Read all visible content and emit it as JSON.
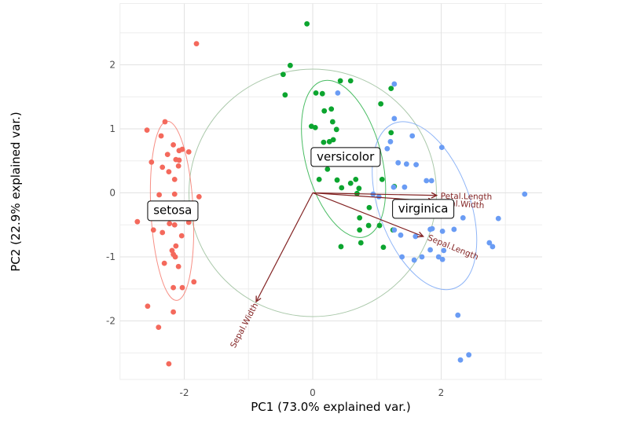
{
  "chart_data": {
    "type": "scatter",
    "title": "",
    "xlabel": "PC1 (73.0% explained var.)",
    "ylabel": "PC2 (22.9% explained var.)",
    "xlim": [
      -3.0,
      3.57
    ],
    "ylim": [
      -2.92,
      2.96
    ],
    "x_ticks": [
      -2,
      0,
      2
    ],
    "y_ticks": [
      -2,
      -1,
      0,
      1,
      2
    ],
    "grid": true,
    "legend_position": "none",
    "colors": {
      "tick_label": "#4d4d4d",
      "grid_major": "#e2e2e2",
      "grid_minor": "#ededed",
      "arrow": "#832424",
      "unit_circle": "#abc9ab"
    },
    "unit_circle_radius": 1.93,
    "series": [
      {
        "name": "setosa",
        "color": "#f4695c",
        "label_box": {
          "text": "setosa",
          "x": -2.18,
          "y": -0.28
        },
        "ellipse": {
          "cx": -2.19,
          "cy": -0.28,
          "rx": 0.33,
          "ry": 1.4,
          "angle": -3
        },
        "points": [
          [
            -1.81,
            2.33
          ],
          [
            -2.3,
            1.11
          ],
          [
            -2.58,
            0.98
          ],
          [
            -2.36,
            0.89
          ],
          [
            -2.17,
            0.75
          ],
          [
            -2.03,
            0.68
          ],
          [
            -2.08,
            0.66
          ],
          [
            -1.93,
            0.64
          ],
          [
            -2.26,
            0.6
          ],
          [
            -2.51,
            0.48
          ],
          [
            -2.13,
            0.52
          ],
          [
            -2.08,
            0.51
          ],
          [
            -2.09,
            0.42
          ],
          [
            -2.34,
            0.4
          ],
          [
            -2.24,
            0.33
          ],
          [
            -2.15,
            0.21
          ],
          [
            -2.39,
            -0.03
          ],
          [
            -2.15,
            -0.02
          ],
          [
            -1.77,
            -0.06
          ],
          [
            -2.73,
            -0.45
          ],
          [
            -2.23,
            -0.48
          ],
          [
            -2.15,
            -0.5
          ],
          [
            -1.93,
            -0.46
          ],
          [
            -2.48,
            -0.58
          ],
          [
            -2.34,
            -0.62
          ],
          [
            -2.04,
            -0.67
          ],
          [
            -2.13,
            -0.83
          ],
          [
            -2.19,
            -0.9
          ],
          [
            -2.17,
            -0.96
          ],
          [
            -2.14,
            -1.0
          ],
          [
            -2.31,
            -1.1
          ],
          [
            -2.09,
            -1.15
          ],
          [
            -1.85,
            -1.39
          ],
          [
            -2.17,
            -1.48
          ],
          [
            -2.03,
            -1.48
          ],
          [
            -2.57,
            -1.77
          ],
          [
            -2.17,
            -1.86
          ],
          [
            -2.4,
            -2.1
          ],
          [
            -2.24,
            -2.67
          ]
        ]
      },
      {
        "name": "versicolor",
        "color": "#0ca52f",
        "label_box": {
          "text": "versicolor",
          "x": 0.51,
          "y": 0.56
        },
        "ellipse": {
          "cx": 0.48,
          "cy": 0.53,
          "rx": 0.59,
          "ry": 1.26,
          "angle": -15
        },
        "points": [
          [
            -0.09,
            2.64
          ],
          [
            -0.35,
            1.99
          ],
          [
            -0.46,
            1.85
          ],
          [
            0.43,
            1.75
          ],
          [
            0.59,
            1.75
          ],
          [
            -0.43,
            1.53
          ],
          [
            0.05,
            1.56
          ],
          [
            0.15,
            1.55
          ],
          [
            0.18,
            1.28
          ],
          [
            0.29,
            1.31
          ],
          [
            1.06,
            1.39
          ],
          [
            1.22,
            1.63
          ],
          [
            0.31,
            1.11
          ],
          [
            -0.02,
            1.04
          ],
          [
            0.04,
            1.02
          ],
          [
            0.37,
            0.99
          ],
          [
            1.22,
            0.94
          ],
          [
            0.17,
            0.79
          ],
          [
            0.26,
            0.8
          ],
          [
            0.32,
            0.83
          ],
          [
            0.23,
            0.37
          ],
          [
            0.1,
            0.21
          ],
          [
            0.38,
            0.2
          ],
          [
            0.59,
            0.15
          ],
          [
            0.45,
            0.08
          ],
          [
            0.67,
            0.21
          ],
          [
            0.72,
            0.07
          ],
          [
            0.69,
            -0.01
          ],
          [
            1.08,
            0.21
          ],
          [
            1.27,
            0.1
          ],
          [
            0.88,
            -0.23
          ],
          [
            0.73,
            -0.39
          ],
          [
            0.87,
            -0.51
          ],
          [
            1.04,
            -0.51
          ],
          [
            0.73,
            -0.58
          ],
          [
            1.25,
            -0.58
          ],
          [
            0.44,
            -0.84
          ],
          [
            0.75,
            -0.78
          ],
          [
            1.1,
            -0.85
          ]
        ]
      },
      {
        "name": "virginica",
        "color": "#6a9cf4",
        "label_box": {
          "text": "virginica",
          "x": 1.72,
          "y": -0.25
        },
        "ellipse": {
          "cx": 1.74,
          "cy": -0.2,
          "rx": 0.71,
          "ry": 1.37,
          "angle": -20
        },
        "points": [
          [
            1.27,
            1.7
          ],
          [
            0.39,
            1.56
          ],
          [
            1.27,
            1.16
          ],
          [
            1.55,
            0.89
          ],
          [
            1.21,
            0.8
          ],
          [
            1.16,
            0.69
          ],
          [
            2.01,
            0.71
          ],
          [
            1.33,
            0.47
          ],
          [
            1.46,
            0.45
          ],
          [
            1.61,
            0.44
          ],
          [
            1.77,
            0.19
          ],
          [
            1.85,
            0.19
          ],
          [
            1.43,
            0.09
          ],
          [
            1.26,
            0.09
          ],
          [
            0.94,
            -0.02
          ],
          [
            1.03,
            -0.06
          ],
          [
            1.37,
            -0.66
          ],
          [
            1.27,
            -0.58
          ],
          [
            1.39,
            -1.0
          ],
          [
            1.6,
            -0.68
          ],
          [
            1.83,
            -0.57
          ],
          [
            1.58,
            -1.05
          ],
          [
            1.7,
            -1.0
          ],
          [
            1.83,
            -0.89
          ],
          [
            2.34,
            -0.39
          ],
          [
            2.89,
            -0.4
          ],
          [
            2.02,
            -0.6
          ],
          [
            2.2,
            -0.57
          ],
          [
            1.86,
            -0.56
          ],
          [
            2.75,
            -0.78
          ],
          [
            2.8,
            -0.84
          ],
          [
            2.04,
            -0.9
          ],
          [
            1.96,
            -1.0
          ],
          [
            2.02,
            -1.04
          ],
          [
            2.26,
            -1.91
          ],
          [
            2.43,
            -2.53
          ],
          [
            2.3,
            -2.61
          ],
          [
            3.3,
            -0.02
          ]
        ]
      }
    ],
    "loadings": [
      {
        "name": "Petal.Length",
        "x": 1.93,
        "y": -0.04,
        "label": {
          "x": 1.99,
          "y": -0.09,
          "rot": 1,
          "anchor": "start"
        }
      },
      {
        "name": "Petal.Width",
        "x": 1.88,
        "y": -0.13,
        "label": {
          "x": 1.94,
          "y": -0.19,
          "rot": 4,
          "anchor": "start"
        }
      },
      {
        "name": "Sepal.Length",
        "x": 1.72,
        "y": -0.68,
        "label": {
          "x": 2.17,
          "y": -0.89,
          "rot": 22,
          "anchor": "middle"
        }
      },
      {
        "name": "Sepal.Width",
        "x": -0.88,
        "y": -1.7,
        "label": {
          "x": -1.03,
          "y": -2.09,
          "rot": -62,
          "anchor": "middle"
        }
      }
    ]
  }
}
